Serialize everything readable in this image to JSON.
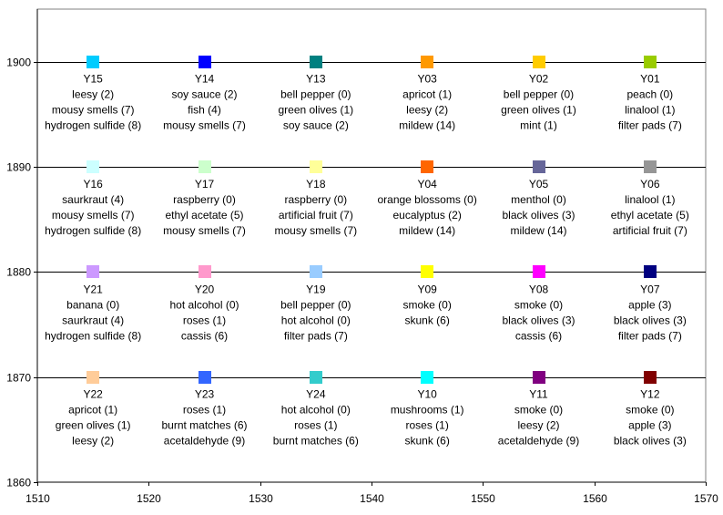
{
  "chart_data": {
    "type": "scatter",
    "title": "",
    "xlabel": "",
    "ylabel": "",
    "xlim": [
      1510,
      1570
    ],
    "ylim": [
      1860,
      1905
    ],
    "x_ticks": [
      "1510",
      "1520",
      "1530",
      "1540",
      "1550",
      "1560",
      "1570"
    ],
    "y_ticks": [
      "1860",
      "1870",
      "1880",
      "1890",
      "1900"
    ],
    "x_tick_values": [
      1510,
      1520,
      1530,
      1540,
      1550,
      1560,
      1570
    ],
    "y_tick_values": [
      1860,
      1870,
      1880,
      1890,
      1900
    ],
    "grid": "horizontal major gridlines",
    "points": [
      {
        "name": "Y15",
        "x": 1515,
        "y": 1900,
        "color": "#00ccff",
        "notes": [
          "leesy (2)",
          "mousy smells (7)",
          "hydrogen sulfide (8)"
        ]
      },
      {
        "name": "Y14",
        "x": 1525,
        "y": 1900,
        "color": "#0000ff",
        "notes": [
          "soy sauce (2)",
          "fish (4)",
          "mousy smells (7)"
        ]
      },
      {
        "name": "Y13",
        "x": 1535,
        "y": 1900,
        "color": "#008080",
        "notes": [
          "bell pepper (0)",
          "green olives (1)",
          "soy sauce (2)"
        ]
      },
      {
        "name": "Y03",
        "x": 1545,
        "y": 1900,
        "color": "#ff9900",
        "notes": [
          "apricot (1)",
          "leesy (2)",
          "mildew (14)"
        ]
      },
      {
        "name": "Y02",
        "x": 1555,
        "y": 1900,
        "color": "#ffcc00",
        "notes": [
          "bell pepper (0)",
          "green olives (1)",
          "mint (1)"
        ]
      },
      {
        "name": "Y01",
        "x": 1565,
        "y": 1900,
        "color": "#99cc00",
        "notes": [
          "peach (0)",
          "linalool (1)",
          "filter pads (7)"
        ]
      },
      {
        "name": "Y16",
        "x": 1515,
        "y": 1890,
        "color": "#ccffff",
        "notes": [
          "saurkraut (4)",
          "mousy smells (7)",
          "hydrogen sulfide (8)"
        ]
      },
      {
        "name": "Y17",
        "x": 1525,
        "y": 1890,
        "color": "#ccffcc",
        "notes": [
          "raspberry (0)",
          "ethyl acetate (5)",
          "mousy smells (7)"
        ]
      },
      {
        "name": "Y18",
        "x": 1535,
        "y": 1890,
        "color": "#ffff99",
        "notes": [
          "raspberry (0)",
          "artificial fruit (7)",
          "mousy smells (7)"
        ]
      },
      {
        "name": "Y04",
        "x": 1545,
        "y": 1890,
        "color": "#ff6600",
        "notes": [
          "orange blossoms (0)",
          "eucalyptus (2)",
          "mildew (14)"
        ]
      },
      {
        "name": "Y05",
        "x": 1555,
        "y": 1890,
        "color": "#666699",
        "notes": [
          "menthol (0)",
          "black olives (3)",
          "mildew (14)"
        ]
      },
      {
        "name": "Y06",
        "x": 1565,
        "y": 1890,
        "color": "#969696",
        "notes": [
          "linalool (1)",
          "ethyl acetate (5)",
          "artificial fruit (7)"
        ]
      },
      {
        "name": "Y21",
        "x": 1515,
        "y": 1880,
        "color": "#cc99ff",
        "notes": [
          "banana (0)",
          "saurkraut (4)",
          "hydrogen sulfide (8)"
        ]
      },
      {
        "name": "Y20",
        "x": 1525,
        "y": 1880,
        "color": "#ff99cc",
        "notes": [
          "hot alcohol (0)",
          "roses (1)",
          "cassis (6)"
        ]
      },
      {
        "name": "Y19",
        "x": 1535,
        "y": 1880,
        "color": "#99ccff",
        "notes": [
          "bell pepper (0)",
          "hot alcohol (0)",
          "filter pads (7)"
        ]
      },
      {
        "name": "Y09",
        "x": 1545,
        "y": 1880,
        "color": "#ffff00",
        "notes": [
          "smoke (0)",
          "skunk (6)"
        ]
      },
      {
        "name": "Y08",
        "x": 1555,
        "y": 1880,
        "color": "#ff00ff",
        "notes": [
          "smoke (0)",
          "black olives (3)",
          "cassis (6)"
        ]
      },
      {
        "name": "Y07",
        "x": 1565,
        "y": 1880,
        "color": "#000080",
        "notes": [
          "apple (3)",
          "black olives (3)",
          "filter pads (7)"
        ]
      },
      {
        "name": "Y22",
        "x": 1515,
        "y": 1870,
        "color": "#ffcc99",
        "notes": [
          "apricot (1)",
          "green olives (1)",
          "leesy (2)"
        ]
      },
      {
        "name": "Y23",
        "x": 1525,
        "y": 1870,
        "color": "#3366ff",
        "notes": [
          "roses (1)",
          "burnt matches (6)",
          "acetaldehyde (9)"
        ]
      },
      {
        "name": "Y24",
        "x": 1535,
        "y": 1870,
        "color": "#33cccc",
        "notes": [
          "hot alcohol (0)",
          "roses (1)",
          "burnt matches (6)"
        ]
      },
      {
        "name": "Y10",
        "x": 1545,
        "y": 1870,
        "color": "#00ffff",
        "notes": [
          "mushrooms (1)",
          "roses (1)",
          "skunk (6)"
        ]
      },
      {
        "name": "Y11",
        "x": 1555,
        "y": 1870,
        "color": "#800080",
        "notes": [
          "smoke (0)",
          "leesy (2)",
          "acetaldehyde (9)"
        ]
      },
      {
        "name": "Y12",
        "x": 1565,
        "y": 1870,
        "color": "#800000",
        "notes": [
          "smoke (0)",
          "apple (3)",
          "black olives (3)"
        ]
      }
    ]
  }
}
